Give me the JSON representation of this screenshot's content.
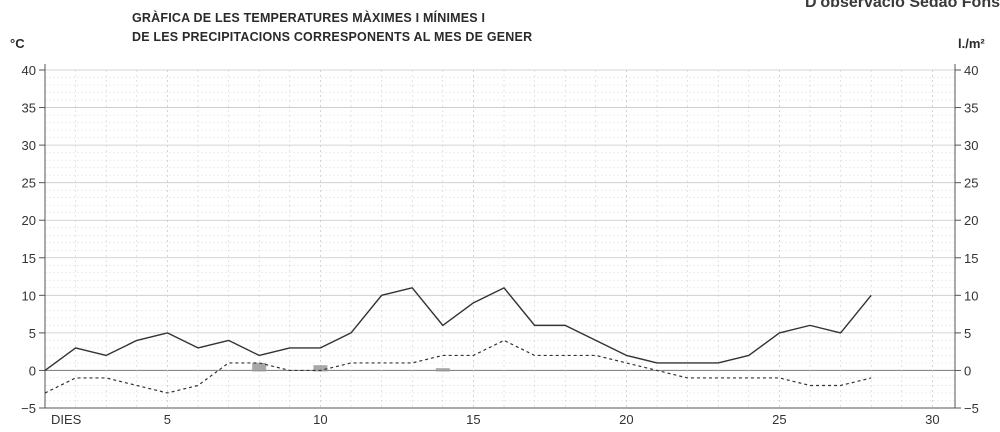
{
  "header_fragment": "D'observació Sedaó Fons",
  "chart_data": {
    "type": "line",
    "title_lines": [
      "GRÀFICA DE LES TEMPERATURES MÀXIMES I MÍNIMES I",
      "DE LES PRECIPITACIONS CORRESPONENTS AL MES DE GENER"
    ],
    "left_unit": "°C",
    "right_unit": "l./m²",
    "xlabel": "DIES",
    "x_ticks": [
      "5",
      "10",
      "15",
      "20",
      "25",
      "30"
    ],
    "y_ticks": [
      "40",
      "35",
      "30",
      "25",
      "20",
      "15",
      "10",
      "5",
      "0",
      "−5"
    ],
    "xlim": [
      0,
      31
    ],
    "ylim": [
      -5,
      40
    ],
    "grid": true,
    "x": [
      1,
      2,
      3,
      4,
      5,
      6,
      7,
      8,
      9,
      10,
      11,
      12,
      13,
      14,
      15,
      16,
      17,
      18,
      19,
      20,
      21,
      22,
      23,
      24,
      25,
      26,
      27,
      28,
      29
    ],
    "series": [
      {
        "style": "solid",
        "values": [
          0,
          3,
          2,
          4,
          5,
          3,
          4,
          2,
          3,
          3,
          5,
          10,
          11,
          6,
          9,
          11,
          6,
          6,
          4,
          2,
          1,
          1,
          1,
          2,
          5,
          6,
          5,
          10,
          null
        ]
      },
      {
        "style": "dashed",
        "values": [
          -3,
          -1,
          -1,
          -2,
          -3,
          -2,
          1,
          1,
          0,
          0,
          1,
          1,
          1,
          2,
          2,
          4,
          2,
          2,
          2,
          1,
          0,
          -1,
          -1,
          -1,
          -1,
          -2,
          -2,
          -1,
          null
        ]
      }
    ],
    "precipitation_bars": [
      {
        "day": 8,
        "value": 1.0
      },
      {
        "day": 10,
        "value": 0.7
      },
      {
        "day": 14,
        "value": 0.3
      }
    ],
    "colors": {
      "line": "#333333",
      "grid": "#c8c8c8",
      "bar": "#999999",
      "zero": "#888888"
    }
  }
}
